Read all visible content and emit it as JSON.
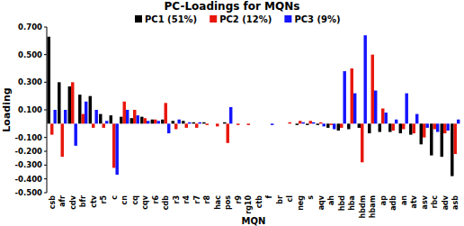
{
  "chart_data": {
    "type": "bar",
    "title": "PC-Loadings for MQNs",
    "x_label": "MQN",
    "y_label": "Loading",
    "categories": [
      "csb",
      "afr",
      "cdv",
      "bfr",
      "ctv",
      "r5",
      "c",
      "cn",
      "cq",
      "cqv",
      "r6",
      "cdb",
      "r3",
      "r4",
      "r7",
      "r8",
      "hac",
      "pos",
      "r9",
      "rg10",
      "ctb",
      "f",
      "br",
      "cl",
      "neg",
      "s",
      "aqv",
      "ah",
      "hbd",
      "hba",
      "hbdm",
      "hbam",
      "ap",
      "adb",
      "an",
      "atv",
      "asv",
      "rbc",
      "adv",
      "asb"
    ],
    "series": [
      {
        "name": "PC1 (51%)",
        "color": "#000000",
        "values": [
          0.63,
          0.3,
          0.27,
          0.21,
          0.2,
          0.07,
          0.06,
          0.05,
          0.04,
          0.05,
          0.03,
          0.03,
          0.02,
          0.02,
          0.01,
          0.01,
          0.0,
          0.01,
          0.0,
          0.0,
          0.0,
          0.0,
          0.0,
          0.0,
          -0.01,
          -0.01,
          -0.01,
          -0.03,
          -0.05,
          -0.04,
          -0.03,
          -0.07,
          -0.06,
          -0.06,
          -0.07,
          -0.08,
          -0.15,
          -0.23,
          -0.24,
          -0.38
        ]
      },
      {
        "name": "PC2 (12%)",
        "color": "#e8170d",
        "values": [
          -0.08,
          -0.24,
          0.3,
          0.07,
          -0.03,
          -0.03,
          -0.32,
          0.16,
          0.1,
          0.04,
          0.03,
          0.15,
          -0.04,
          -0.03,
          -0.03,
          -0.01,
          -0.02,
          -0.14,
          -0.01,
          -0.01,
          0.0,
          0.0,
          0.0,
          0.01,
          0.02,
          0.02,
          0.01,
          -0.01,
          -0.03,
          0.4,
          -0.28,
          0.5,
          0.11,
          -0.05,
          -0.04,
          -0.07,
          -0.1,
          -0.04,
          -0.07,
          -0.22
        ]
      },
      {
        "name": "PC3 (9%)",
        "color": "#1414ff",
        "values": [
          0.1,
          0.1,
          -0.16,
          0.16,
          0.1,
          0.02,
          -0.37,
          0.1,
          0.06,
          0.02,
          0.02,
          -0.07,
          0.03,
          0.01,
          0.01,
          0.0,
          0.0,
          0.12,
          0.0,
          0.0,
          0.0,
          -0.01,
          0.0,
          0.0,
          0.01,
          0.01,
          -0.02,
          -0.04,
          0.38,
          0.22,
          0.64,
          0.24,
          0.08,
          0.03,
          0.22,
          0.07,
          -0.03,
          -0.06,
          -0.05,
          0.03
        ]
      }
    ],
    "ylim": [
      -0.5,
      0.7
    ],
    "yticks": [
      {
        "value": -0.5,
        "label": "-0.500"
      },
      {
        "value": -0.4,
        "label": "-0.400"
      },
      {
        "value": -0.3,
        "label": "-0.300"
      },
      {
        "value": -0.2,
        "label": "-0.200"
      },
      {
        "value": -0.1,
        "label": "-0.100"
      },
      {
        "value": 0.1,
        "label": "0.100"
      },
      {
        "value": 0.3,
        "label": "0.300"
      },
      {
        "value": 0.5,
        "label": "0.500"
      },
      {
        "value": 0.7,
        "label": "0.700"
      }
    ],
    "grid": false,
    "legend": "top"
  }
}
